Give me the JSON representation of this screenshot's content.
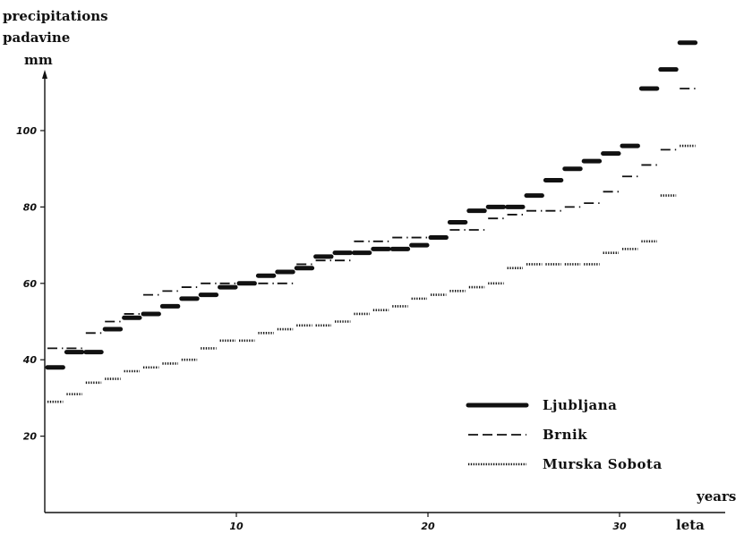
{
  "chart_data": {
    "type": "line",
    "y_label_lines": [
      "precipitations",
      "padavine",
      "mm"
    ],
    "x_label_lines": [
      "years",
      "leta"
    ],
    "x_ticks": [
      "10",
      "20",
      "30"
    ],
    "y_ticks": [
      "20",
      "40",
      "60",
      "80",
      "100"
    ],
    "xlim": [
      0,
      36
    ],
    "ylim": [
      0,
      126
    ],
    "grid": false,
    "legend_position": "bottom-right",
    "series": [
      {
        "name": "Ljubljana",
        "style": "thick",
        "values": [
          38,
          42,
          42,
          48,
          51,
          52,
          54,
          56,
          57,
          59,
          60,
          62,
          63,
          64,
          67,
          68,
          68,
          69,
          69,
          70,
          72,
          76,
          79,
          80,
          80,
          83,
          87,
          90,
          92,
          94,
          96,
          111,
          116,
          123
        ]
      },
      {
        "name": "Brnik",
        "style": "dashed",
        "values": [
          43,
          43,
          47,
          50,
          52,
          57,
          58,
          59,
          60,
          60,
          60,
          60,
          60,
          65,
          66,
          66,
          71,
          71,
          72,
          72,
          72,
          74,
          74,
          77,
          78,
          79,
          79,
          80,
          81,
          84,
          88,
          91,
          95,
          111
        ]
      },
      {
        "name": "Murska Sobota",
        "style": "dotted",
        "values": [
          29,
          31,
          34,
          35,
          37,
          38,
          39,
          40,
          43,
          45,
          45,
          47,
          48,
          49,
          49,
          50,
          52,
          53,
          54,
          56,
          57,
          58,
          59,
          60,
          64,
          65,
          65,
          65,
          65,
          68,
          69,
          71,
          83,
          96
        ]
      }
    ]
  }
}
